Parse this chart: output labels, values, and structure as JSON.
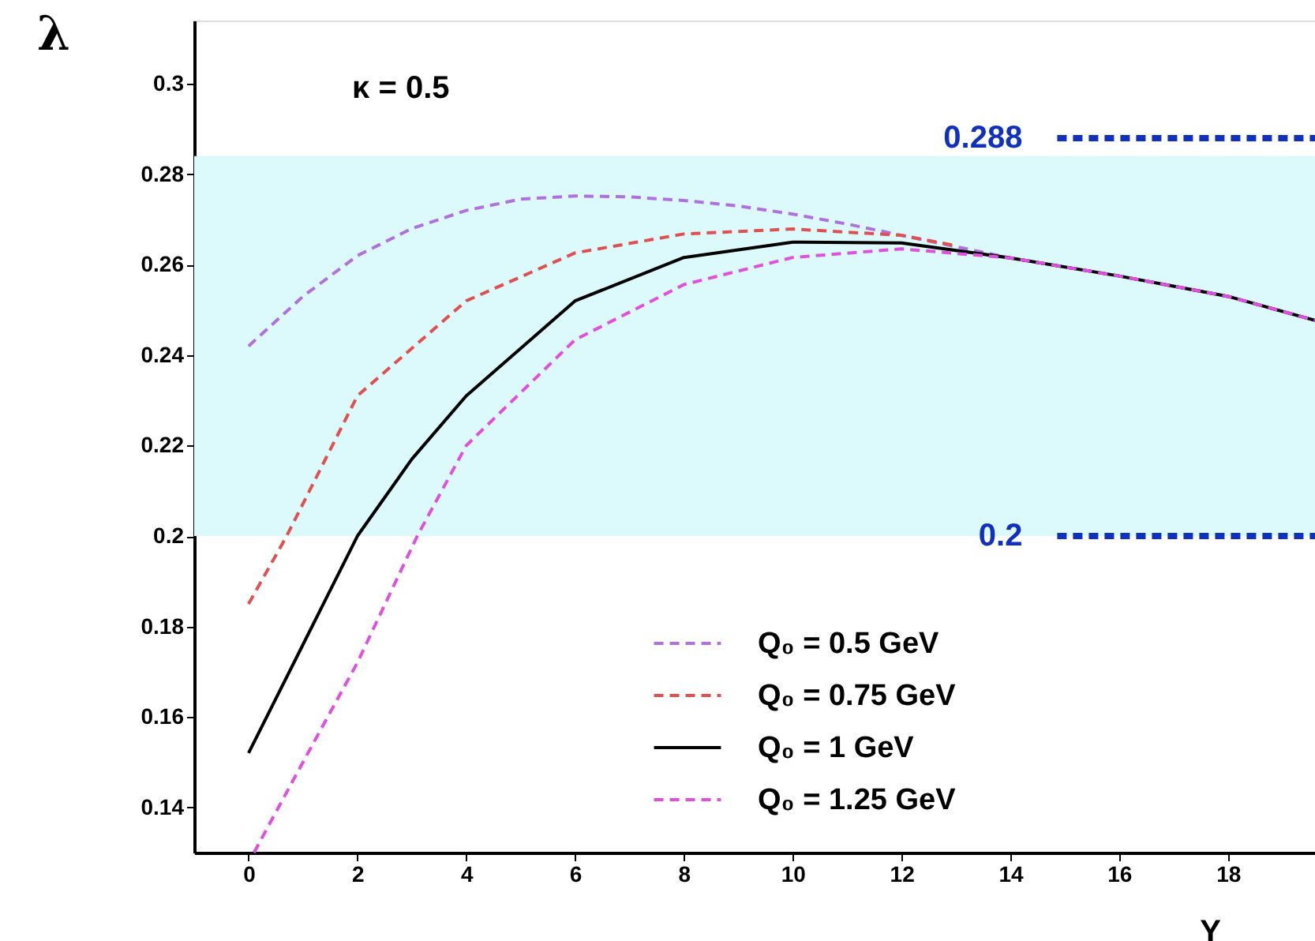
{
  "chart_data": {
    "type": "line",
    "xlabel": "Y",
    "ylabel": "λ",
    "xlim": [
      -1,
      19.6
    ],
    "ylim": [
      0.13,
      0.314
    ],
    "xticks": [
      0,
      2,
      4,
      6,
      8,
      10,
      12,
      14,
      16,
      18
    ],
    "yticks": [
      0.14,
      0.16,
      0.18,
      0.2,
      0.22,
      0.24,
      0.26,
      0.28,
      0.3
    ],
    "grid": false,
    "legend": "bottom right",
    "marker": "none",
    "annotations": [
      "κ = 0.5"
    ],
    "bands": [
      {
        "axis": "y",
        "from": 0.2,
        "to": 0.284,
        "color": "#dcfafc"
      }
    ],
    "ref_lines": [
      {
        "axis": "y",
        "value": 0.288,
        "label": "0.288",
        "color": "#1030c0",
        "line_style": "dashed"
      },
      {
        "axis": "y",
        "value": 0.2,
        "label": "0.2",
        "color": "#1030c0",
        "line_style": "dashed"
      }
    ],
    "series": [
      {
        "name": "Q₀ = 0.5 GeV",
        "color": "#b070e0",
        "line_style": "dashed",
        "x": [
          0,
          1,
          2,
          3,
          4,
          5,
          6,
          7,
          8,
          9,
          10,
          11,
          12,
          13,
          14,
          16,
          18,
          19.6
        ],
        "values": [
          0.242,
          0.253,
          0.262,
          0.268,
          0.272,
          0.2745,
          0.2752,
          0.275,
          0.2742,
          0.273,
          0.2712,
          0.269,
          0.2665,
          0.264,
          0.2615,
          0.2575,
          0.253,
          0.2477
        ]
      },
      {
        "name": "Q₀ = 0.75 GeV",
        "color": "#e05050",
        "line_style": "dashed",
        "x": [
          0,
          0.7,
          2,
          4,
          6,
          8,
          10,
          12,
          13
        ],
        "values": [
          0.185,
          0.2,
          0.231,
          0.252,
          0.2626,
          0.2668,
          0.2679,
          0.2665,
          0.2642
        ]
      },
      {
        "name": "Q₀ = 1 GeV",
        "color": "#000000",
        "line_style": "solid",
        "x": [
          0,
          1,
          2,
          3,
          4,
          6,
          8,
          10,
          12,
          14,
          16,
          18,
          19.6
        ],
        "values": [
          0.152,
          0.176,
          0.2,
          0.217,
          0.231,
          0.252,
          0.2616,
          0.265,
          0.2648,
          0.2615,
          0.2575,
          0.253,
          0.2477
        ]
      },
      {
        "name": "Q₀ = 1.25 GeV",
        "color": "#e050e0",
        "line_style": "dashed",
        "x": [
          0.1,
          1,
          2,
          3.1,
          4,
          6,
          8,
          10,
          12,
          14,
          16,
          18,
          19.6
        ],
        "values": [
          0.13,
          0.15,
          0.172,
          0.2,
          0.22,
          0.2434,
          0.2556,
          0.2616,
          0.2635,
          0.2615,
          0.2575,
          0.253,
          0.2477
        ]
      }
    ]
  }
}
